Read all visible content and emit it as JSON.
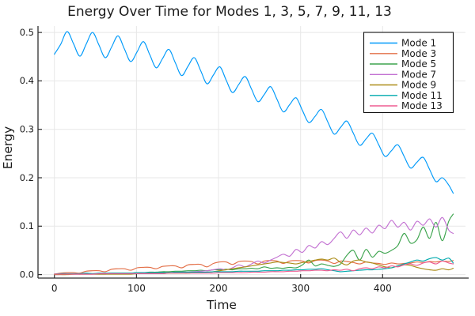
{
  "figure": {
    "background": "#ffffff",
    "grid_color": "#e7e7e7",
    "axis_color": "#2f2f2f"
  },
  "chart_data": {
    "type": "line",
    "title": "Energy Over Time for Modes 1, 3, 5, 7, 9, 11, 13",
    "xlabel": "Time",
    "ylabel": "Energy",
    "xlim": [
      -20,
      501
    ],
    "ylim": [
      -0.0072,
      0.5132
    ],
    "xticks": [
      0,
      100,
      200,
      300,
      400
    ],
    "xtick_labels": [
      "0",
      "100",
      "200",
      "300",
      "400"
    ],
    "yticks": [
      0,
      0.1,
      0.2,
      0.3,
      0.4,
      0.5
    ],
    "ytick_labels": [
      "0.0",
      "0.1",
      "0.2",
      "0.3",
      "0.4",
      "0.5"
    ],
    "grid": true,
    "legend_position": "top-right",
    "x": [
      0,
      7.75,
      15.5,
      23.25,
      31,
      38.75,
      46.5,
      54.25,
      62,
      69.75,
      77.5,
      85.25,
      93,
      100.75,
      108.5,
      116.25,
      124,
      131.75,
      139.5,
      147.25,
      155,
      162.75,
      170.5,
      178.25,
      186,
      193.75,
      201.5,
      209.25,
      217,
      224.75,
      232.5,
      240.25,
      248,
      255.75,
      263.5,
      271.25,
      279,
      286.75,
      294.5,
      302.25,
      310,
      317.75,
      325.5,
      333.25,
      341,
      348.75,
      356.5,
      364.25,
      372,
      379.75,
      387.5,
      395.25,
      403,
      410.75,
      418.5,
      426.25,
      434,
      441.75,
      449.5,
      457.25,
      465,
      472.75,
      480.5,
      486
    ],
    "series": [
      {
        "name": "Mode 1",
        "color": "#009AFA",
        "values": [
          0.455,
          0.476,
          0.502,
          0.477,
          0.451,
          0.476,
          0.5,
          0.474,
          0.448,
          0.47,
          0.493,
          0.466,
          0.44,
          0.46,
          0.481,
          0.454,
          0.427,
          0.446,
          0.465,
          0.438,
          0.411,
          0.43,
          0.448,
          0.421,
          0.394,
          0.412,
          0.429,
          0.402,
          0.376,
          0.393,
          0.409,
          0.383,
          0.357,
          0.372,
          0.388,
          0.362,
          0.336,
          0.351,
          0.365,
          0.339,
          0.314,
          0.327,
          0.341,
          0.315,
          0.29,
          0.304,
          0.317,
          0.292,
          0.267,
          0.28,
          0.292,
          0.268,
          0.244,
          0.256,
          0.268,
          0.244,
          0.22,
          0.232,
          0.242,
          0.217,
          0.192,
          0.2,
          0.185,
          0.168
        ]
      },
      {
        "name": "Mode 3",
        "color": "#E36F47",
        "values": [
          0.001,
          0.003,
          0.004,
          0.004,
          0.003,
          0.007,
          0.008,
          0.008,
          0.006,
          0.011,
          0.012,
          0.012,
          0.009,
          0.014,
          0.015,
          0.015,
          0.012,
          0.017,
          0.018,
          0.018,
          0.014,
          0.02,
          0.021,
          0.021,
          0.016,
          0.023,
          0.026,
          0.026,
          0.021,
          0.027,
          0.028,
          0.027,
          0.022,
          0.028,
          0.029,
          0.028,
          0.023,
          0.028,
          0.029,
          0.028,
          0.024,
          0.029,
          0.03,
          0.028,
          0.023,
          0.028,
          0.027,
          0.025,
          0.022,
          0.026,
          0.024,
          0.023,
          0.021,
          0.024,
          0.022,
          0.023,
          0.024,
          0.026,
          0.025,
          0.027,
          0.026,
          0.028,
          0.027,
          0.029
        ]
      },
      {
        "name": "Mode 5",
        "color": "#3DA44E",
        "values": [
          0.0,
          0.001,
          0.001,
          0.001,
          0.001,
          0.002,
          0.002,
          0.002,
          0.002,
          0.003,
          0.003,
          0.003,
          0.003,
          0.004,
          0.004,
          0.005,
          0.005,
          0.006,
          0.006,
          0.007,
          0.007,
          0.008,
          0.008,
          0.009,
          0.008,
          0.01,
          0.01,
          0.011,
          0.01,
          0.012,
          0.012,
          0.013,
          0.012,
          0.016,
          0.013,
          0.014,
          0.013,
          0.015,
          0.014,
          0.02,
          0.03,
          0.018,
          0.022,
          0.019,
          0.017,
          0.022,
          0.04,
          0.05,
          0.03,
          0.052,
          0.036,
          0.048,
          0.044,
          0.05,
          0.06,
          0.085,
          0.065,
          0.072,
          0.098,
          0.075,
          0.108,
          0.07,
          0.11,
          0.125
        ]
      },
      {
        "name": "Mode 7",
        "color": "#C372D2",
        "values": [
          0.0,
          0.0,
          0.001,
          0.001,
          0.001,
          0.001,
          0.001,
          0.001,
          0.001,
          0.002,
          0.002,
          0.002,
          0.002,
          0.002,
          0.003,
          0.003,
          0.003,
          0.003,
          0.004,
          0.004,
          0.005,
          0.005,
          0.006,
          0.007,
          0.008,
          0.01,
          0.012,
          0.01,
          0.014,
          0.02,
          0.016,
          0.022,
          0.028,
          0.024,
          0.03,
          0.036,
          0.042,
          0.038,
          0.052,
          0.046,
          0.06,
          0.055,
          0.068,
          0.062,
          0.075,
          0.088,
          0.075,
          0.092,
          0.082,
          0.096,
          0.086,
          0.102,
          0.095,
          0.112,
          0.098,
          0.108,
          0.092,
          0.11,
          0.102,
          0.115,
          0.098,
          0.118,
          0.092,
          0.085
        ]
      },
      {
        "name": "Mode 9",
        "color": "#AC8D18",
        "values": [
          0.0,
          0.0,
          0.0,
          0.001,
          0.001,
          0.001,
          0.001,
          0.001,
          0.001,
          0.001,
          0.001,
          0.001,
          0.001,
          0.002,
          0.002,
          0.002,
          0.002,
          0.002,
          0.003,
          0.003,
          0.003,
          0.003,
          0.004,
          0.004,
          0.005,
          0.006,
          0.008,
          0.01,
          0.012,
          0.014,
          0.016,
          0.018,
          0.02,
          0.022,
          0.024,
          0.026,
          0.025,
          0.024,
          0.022,
          0.025,
          0.027,
          0.03,
          0.032,
          0.03,
          0.034,
          0.025,
          0.02,
          0.028,
          0.03,
          0.026,
          0.024,
          0.02,
          0.016,
          0.014,
          0.018,
          0.02,
          0.019,
          0.015,
          0.012,
          0.01,
          0.009,
          0.012,
          0.01,
          0.013
        ]
      },
      {
        "name": "Mode 11",
        "color": "#00AAAE",
        "values": [
          0.001,
          0.002,
          0.002,
          0.002,
          0.002,
          0.003,
          0.002,
          0.003,
          0.003,
          0.003,
          0.003,
          0.003,
          0.003,
          0.004,
          0.004,
          0.004,
          0.004,
          0.004,
          0.004,
          0.005,
          0.005,
          0.005,
          0.005,
          0.005,
          0.005,
          0.006,
          0.006,
          0.006,
          0.006,
          0.007,
          0.007,
          0.007,
          0.007,
          0.008,
          0.008,
          0.008,
          0.009,
          0.009,
          0.01,
          0.01,
          0.011,
          0.011,
          0.012,
          0.01,
          0.008,
          0.006,
          0.007,
          0.008,
          0.009,
          0.01,
          0.01,
          0.011,
          0.012,
          0.014,
          0.018,
          0.022,
          0.026,
          0.03,
          0.028,
          0.033,
          0.035,
          0.03,
          0.034,
          0.024
        ]
      },
      {
        "name": "Mode 13",
        "color": "#ED5D92",
        "values": [
          0.001,
          0.001,
          0.001,
          0.001,
          0.001,
          0.001,
          0.001,
          0.002,
          0.002,
          0.002,
          0.002,
          0.002,
          0.002,
          0.002,
          0.002,
          0.002,
          0.002,
          0.002,
          0.003,
          0.003,
          0.003,
          0.003,
          0.003,
          0.003,
          0.003,
          0.003,
          0.004,
          0.004,
          0.004,
          0.004,
          0.004,
          0.005,
          0.005,
          0.005,
          0.006,
          0.006,
          0.006,
          0.007,
          0.007,
          0.008,
          0.008,
          0.009,
          0.009,
          0.008,
          0.01,
          0.009,
          0.011,
          0.008,
          0.012,
          0.014,
          0.012,
          0.016,
          0.014,
          0.018,
          0.016,
          0.02,
          0.022,
          0.019,
          0.024,
          0.026,
          0.022,
          0.028,
          0.024,
          0.022
        ]
      }
    ]
  }
}
